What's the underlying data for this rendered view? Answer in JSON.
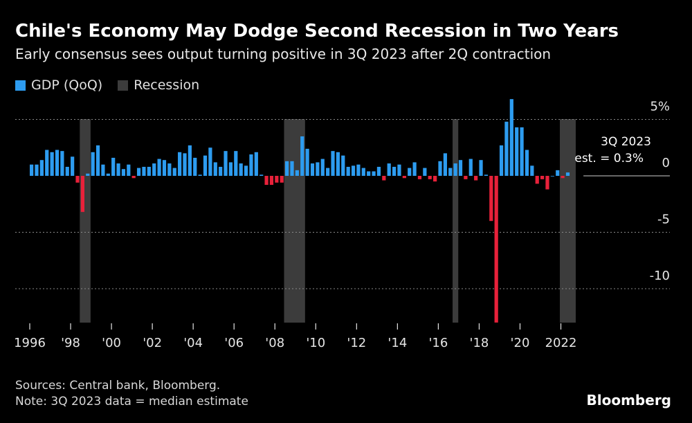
{
  "header": {
    "title": "Chile's Economy May Dodge Second Recession in Two Years",
    "subtitle": "Early consensus sees output turning positive in 3Q 2023 after 2Q contraction"
  },
  "legend": {
    "gdp_label": "GDP (QoQ)",
    "recession_label": "Recession"
  },
  "colors": {
    "positive": "#2d9cf0",
    "negative": "#e8213a",
    "recession": "#3c3c3c",
    "grid": "#8a8a8a",
    "background": "#000000"
  },
  "annotation": {
    "line1": "3Q 2023",
    "line2": "est. = 0.3%"
  },
  "footer": {
    "sources": "Sources: Central bank, Bloomberg.",
    "note": "Note: 3Q 2023 data = median estimate",
    "brand": "Bloomberg"
  },
  "chart_data": {
    "type": "bar",
    "start_year": 1996,
    "start_quarter": 1,
    "ylim": [
      -13,
      6.5
    ],
    "yticks": [
      {
        "value": 5,
        "label": "5%"
      },
      {
        "value": 0,
        "label": "0"
      },
      {
        "value": -5,
        "label": "-5"
      },
      {
        "value": -10,
        "label": "-10"
      }
    ],
    "xticks": [
      {
        "year": 1996,
        "label": "1996"
      },
      {
        "year": 1998,
        "label": "'98"
      },
      {
        "year": 2000,
        "label": "'00"
      },
      {
        "year": 2002,
        "label": "'02"
      },
      {
        "year": 2004,
        "label": "'04"
      },
      {
        "year": 2006,
        "label": "'06"
      },
      {
        "year": 2008,
        "label": "'08"
      },
      {
        "year": 2010,
        "label": "'10"
      },
      {
        "year": 2012,
        "label": "'12"
      },
      {
        "year": 2014,
        "label": "'14"
      },
      {
        "year": 2016,
        "label": "'16"
      },
      {
        "year": 2018,
        "label": "'18"
      },
      {
        "year": 2020,
        "label": "'20"
      },
      {
        "year": 2022,
        "label": "2022"
      }
    ],
    "recessions": [
      {
        "start": "1998Q3",
        "end": "1998Q4"
      },
      {
        "start": "2008Q3",
        "end": "2009Q2"
      },
      {
        "start": "2016Q4",
        "end": "2016Q4"
      },
      {
        "start": "2022Q1",
        "end": "2022Q3"
      }
    ],
    "series": [
      {
        "name": "GDP (QoQ)",
        "values": [
          1.0,
          1.0,
          1.4,
          2.3,
          2.1,
          2.3,
          2.2,
          0.8,
          1.7,
          -0.6,
          -3.2,
          0.2,
          2.1,
          2.7,
          1.0,
          0.2,
          1.6,
          1.1,
          0.6,
          1.0,
          -0.2,
          0.7,
          0.8,
          0.8,
          1.1,
          1.5,
          1.4,
          1.1,
          0.7,
          2.1,
          2.0,
          2.7,
          1.6,
          0.1,
          1.8,
          2.5,
          1.2,
          0.8,
          2.2,
          1.2,
          2.2,
          1.1,
          0.9,
          1.9,
          2.1,
          0.1,
          -0.8,
          -0.8,
          -0.6,
          -0.6,
          1.3,
          1.3,
          0.5,
          3.5,
          2.4,
          1.1,
          1.2,
          1.5,
          0.7,
          2.2,
          2.1,
          1.8,
          0.8,
          0.9,
          1.0,
          0.7,
          0.4,
          0.4,
          0.8,
          -0.4,
          1.1,
          0.8,
          1.0,
          -0.2,
          0.7,
          1.2,
          -0.3,
          0.7,
          -0.3,
          -0.5,
          1.3,
          2.0,
          0.7,
          1.1,
          1.4,
          -0.3,
          1.5,
          -0.4,
          1.4,
          0.1,
          -4.0,
          -13.0,
          2.7,
          4.8,
          6.8,
          4.3,
          4.3,
          2.3,
          0.9,
          -0.7,
          -0.3,
          -1.2,
          0.0,
          0.5,
          -0.2,
          0.3
        ]
      }
    ]
  }
}
